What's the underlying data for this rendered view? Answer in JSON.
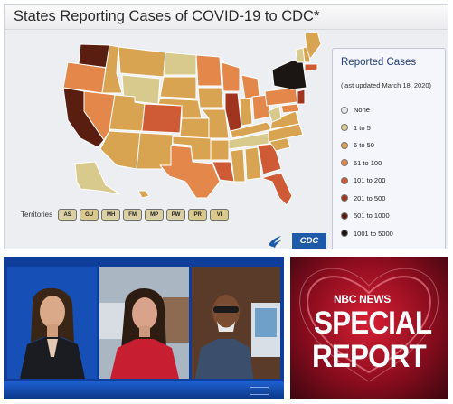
{
  "cdc": {
    "title": "States Reporting Cases of COVID-19 to CDC*",
    "territories_label": "Territories",
    "territories": [
      "AS",
      "GU",
      "MH",
      "FM",
      "MP",
      "PW",
      "PR",
      "VI"
    ],
    "legend": {
      "title": "Reported Cases",
      "subtitle": "(last updated March 18, 2020)",
      "items": [
        {
          "label": "None",
          "color": "#e9ecef"
        },
        {
          "label": "1 to 5",
          "color": "#d8c98c"
        },
        {
          "label": "6 to 50",
          "color": "#d9a451"
        },
        {
          "label": "51 to 100",
          "color": "#e3874a"
        },
        {
          "label": "101 to 200",
          "color": "#cf5a36"
        },
        {
          "label": "201 to 500",
          "color": "#a0341e"
        },
        {
          "label": "501 to 1000",
          "color": "#5a1e10"
        },
        {
          "label": "1001 to 5000",
          "color": "#1b1513"
        }
      ]
    },
    "logo_text": "CDC",
    "map_colors": {
      "border": "#ffffff",
      "background": "#eceef2"
    }
  },
  "broadcast": {
    "ticker_mark": ""
  },
  "nbc": {
    "brand": "NBC NEWS",
    "line1": "SPECIAL",
    "line2": "REPORT"
  }
}
